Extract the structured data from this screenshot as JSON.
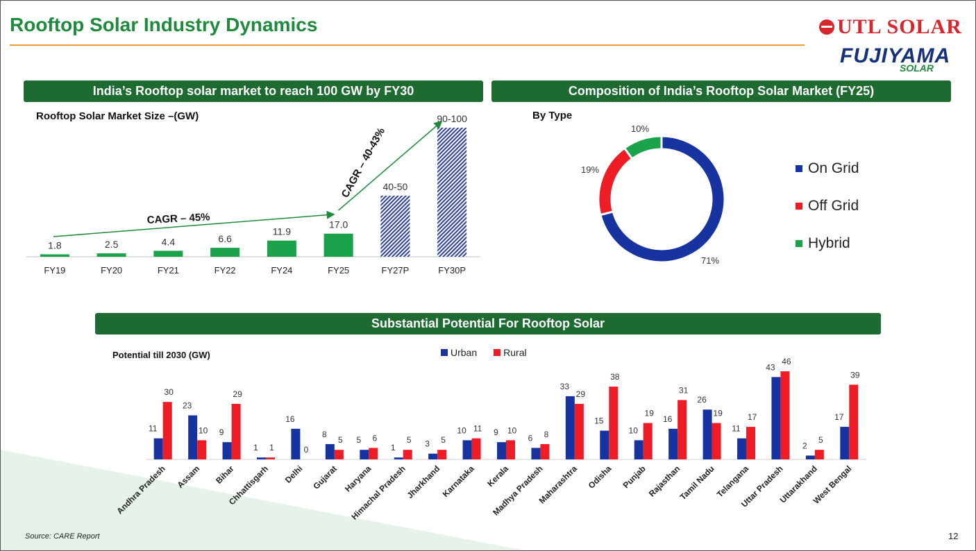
{
  "page": {
    "title": "Rooftop Solar Industry Dynamics",
    "source": "Source: CARE Report",
    "page_number": "12"
  },
  "logos": {
    "utl": "UTL SOLAR",
    "fujiyama": "FUJIYAMA",
    "fujiyama_sub": "SOLAR"
  },
  "colors": {
    "green_title": "#1e8a3c",
    "banner": "#1e6b32",
    "bar_green": "#1aa34a",
    "hatch_blue": "#2a3f9e",
    "on_grid": "#1633a0",
    "off_grid": "#ee1c25",
    "hybrid": "#1aa34a",
    "urban": "#1633a0",
    "rural": "#ee1c25",
    "accent_line": "#f29a2e"
  },
  "banners": {
    "market": "India’s Rooftop solar market to reach 100 GW by FY30",
    "composition": "Composition of India’s Rooftop Solar Market (FY25)",
    "potential": "Substantial Potential For Rooftop Solar"
  },
  "chart_data": [
    {
      "type": "bar",
      "title": "Rooftop Solar Market Size –(GW)",
      "categories": [
        "FY19",
        "FY20",
        "FY21",
        "FY22",
        "FY24",
        "FY25",
        "FY27P",
        "FY30P"
      ],
      "values": [
        1.8,
        2.5,
        4.4,
        6.6,
        11.9,
        17.0,
        45,
        95
      ],
      "data_labels": [
        "1.8",
        "2.5",
        "4.4",
        "6.6",
        "11.9",
        "17.0",
        "40-50",
        "90-100"
      ],
      "projected": [
        false,
        false,
        false,
        false,
        false,
        false,
        true,
        true
      ],
      "annotations": [
        "CAGR – 45%",
        "CAGR – 40-43%"
      ]
    },
    {
      "type": "pie",
      "title": "By Type",
      "labels": [
        "On Grid",
        "Off Grid",
        "Hybrid"
      ],
      "values": [
        71,
        19,
        10
      ],
      "data_labels": [
        "71%",
        "19%",
        "10%"
      ],
      "legend": "right"
    },
    {
      "type": "bar",
      "title": "Potential till 2030 (GW)",
      "categories": [
        "Andhra Pradesh",
        "Assam",
        "Bihar",
        "Chhattisgarh",
        "Delhi",
        "Gujarat",
        "Haryana",
        "Himachal Pradesh",
        "Jharkhand",
        "Karnataka",
        "Kerala",
        "Madhya Pradesh",
        "Maharashtra",
        "Odisha",
        "Punjab",
        "Rajasthan",
        "Tamil Nadu",
        "Telangana",
        "Uttar Pradesh",
        "Uttarakhand",
        "West Bengal"
      ],
      "series": [
        {
          "name": "Urban",
          "values": [
            11,
            23,
            9,
            1,
            16,
            8,
            5,
            1,
            3,
            10,
            9,
            6,
            33,
            15,
            10,
            16,
            26,
            11,
            43,
            2,
            17
          ]
        },
        {
          "name": "Rural",
          "values": [
            30,
            10,
            29,
            1,
            0,
            5,
            6,
            5,
            5,
            11,
            10,
            8,
            29,
            38,
            19,
            31,
            19,
            17,
            46,
            5,
            39
          ]
        }
      ],
      "legend": "top"
    }
  ]
}
